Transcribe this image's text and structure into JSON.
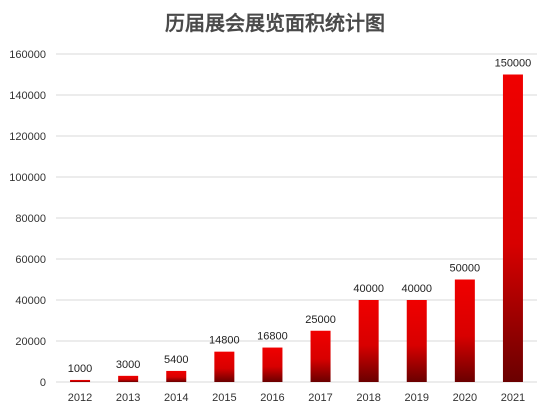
{
  "chart_data": {
    "type": "bar",
    "title": "历届展会展览面积统计图",
    "xlabel": "",
    "ylabel": "",
    "categories": [
      "2012",
      "2013",
      "2014",
      "2015",
      "2016",
      "2017",
      "2018",
      "2019",
      "2020",
      "2021"
    ],
    "values": [
      1000,
      3000,
      5400,
      14800,
      16800,
      25000,
      40000,
      40000,
      50000,
      150000
    ],
    "ylim": [
      0,
      160000
    ],
    "yticks": [
      "0",
      "20000",
      "40000",
      "60000",
      "80000",
      "100000",
      "120000",
      "140000",
      "160000"
    ],
    "grid": true,
    "legend": "none",
    "colors": {
      "bar_top": "#f00000",
      "bar_bottom": "#6a0000",
      "grid": "#d9d9d9"
    }
  }
}
